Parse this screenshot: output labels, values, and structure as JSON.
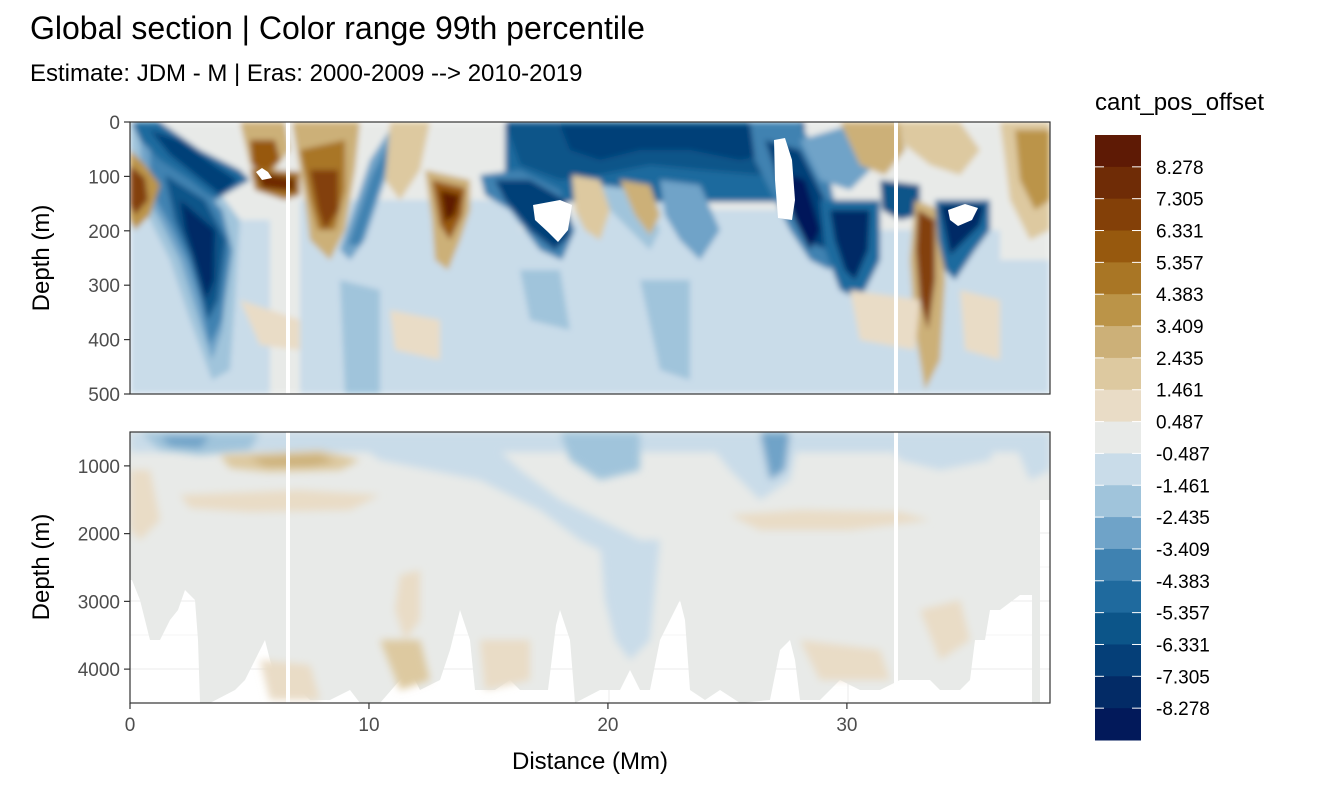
{
  "title": "Global section | Color range 99th percentile",
  "subtitle": "Estimate: JDM - M | Eras: 2000-2009 --> 2010-2019",
  "chart_data": {
    "type": "heatmap",
    "xlabel": "Distance (Mm)",
    "xlim": [
      0,
      38.5
    ],
    "x_ticks": [
      "0",
      "10",
      "20",
      "30"
    ],
    "panels": [
      {
        "ylabel": "Depth (m)",
        "ylim": [
          0,
          500
        ],
        "y_reversed": true,
        "y_ticks": [
          "0",
          "100",
          "200",
          "300",
          "400",
          "500"
        ]
      },
      {
        "ylabel": "Depth (m)",
        "ylim": [
          500,
          4500
        ],
        "y_reversed": true,
        "y_ticks": [
          "1000",
          "2000",
          "3000",
          "4000"
        ]
      }
    ],
    "legend": {
      "title": "cant_pos_offset",
      "position": "right",
      "levels": [
        "8.278",
        "7.305",
        "6.331",
        "5.357",
        "4.383",
        "3.409",
        "2.435",
        "1.461",
        "0.487",
        "-0.487",
        "-1.461",
        "-2.435",
        "-3.409",
        "-4.383",
        "-5.357",
        "-6.331",
        "-7.305",
        "-8.278"
      ],
      "colors": [
        "#5e1a05",
        "#6f2c06",
        "#834008",
        "#97590e",
        "#a97625",
        "#bb9448",
        "#ccb078",
        "#ddc9a0",
        "#e9dcc6",
        "#e8eae8",
        "#c9dce9",
        "#a0c4db",
        "#6fa3c8",
        "#3f82b1",
        "#1f6a9e",
        "#0c5589",
        "#053f78",
        "#032b66",
        "#02195a"
      ]
    },
    "grid": true
  }
}
